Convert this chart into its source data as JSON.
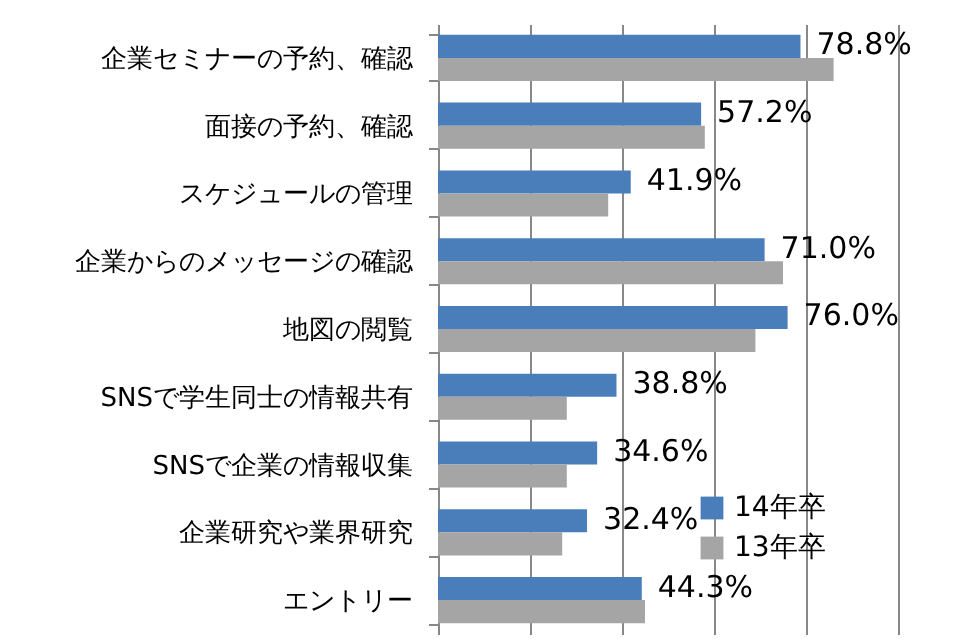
{
  "chart_data": {
    "type": "bar",
    "orientation": "horizontal",
    "categories": [
      "企業セミナーの予約、確認",
      "面接の予約、確認",
      "スケジュールの管理",
      "企業からのメッセージの確認",
      "地図の閲覧",
      "SNSで学生同士の情報共有",
      "SNSで企業の情報収集",
      "企業研究や業界研究",
      "エントリー"
    ],
    "series": [
      {
        "name": "14年卒",
        "color": "#4a7ebb",
        "values": [
          78.8,
          57.2,
          41.9,
          71.0,
          76.0,
          38.8,
          34.6,
          32.4,
          44.3
        ],
        "value_labels": [
          "78.8%",
          "57.2%",
          "41.9%",
          "71.0%",
          "76.0%",
          "38.8%",
          "34.6%",
          "32.4%",
          "44.3%"
        ]
      },
      {
        "name": "13年卒",
        "color": "#a5a5a5",
        "values": [
          86,
          58,
          37,
          75,
          69,
          28,
          28,
          27,
          45
        ]
      }
    ],
    "xlim": [
      0,
      100
    ],
    "xticks": [
      {
        "value": 0,
        "label": null
      },
      {
        "value": 20,
        "label": null
      },
      {
        "value": 40,
        "label": null
      },
      {
        "value": 60,
        "label": null
      },
      {
        "value": 80,
        "label": null
      },
      {
        "value": 100,
        "label": null
      }
    ],
    "grid": "x",
    "tick_labels": "y",
    "legend": "bottom right"
  }
}
